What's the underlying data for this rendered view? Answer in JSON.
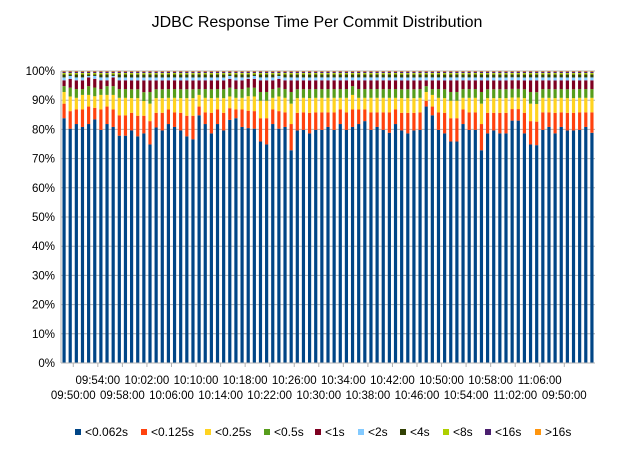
{
  "chart_data": {
    "type": "bar",
    "stacked": true,
    "normalized": true,
    "title": "JDBC Response Time Per Commit Distribution",
    "ylabel": "",
    "xlabel": "",
    "ylim": [
      0,
      100
    ],
    "yticks": [
      "0%",
      "10%",
      "20%",
      "30%",
      "40%",
      "50%",
      "60%",
      "70%",
      "80%",
      "90%",
      "100%"
    ],
    "xtick_labels": [
      {
        "bar": 2,
        "row": 1,
        "text": "09:50:00"
      },
      {
        "bar": 6,
        "row": 0,
        "text": "09:54:00"
      },
      {
        "bar": 10,
        "row": 1,
        "text": "09:58:00"
      },
      {
        "bar": 14,
        "row": 0,
        "text": "10:02:00"
      },
      {
        "bar": 18,
        "row": 1,
        "text": "10:06:00"
      },
      {
        "bar": 22,
        "row": 0,
        "text": "10:10:00"
      },
      {
        "bar": 26,
        "row": 1,
        "text": "10:14:00"
      },
      {
        "bar": 30,
        "row": 0,
        "text": "10:18:00"
      },
      {
        "bar": 34,
        "row": 1,
        "text": "10:22:00"
      },
      {
        "bar": 38,
        "row": 0,
        "text": "10:26:00"
      },
      {
        "bar": 42,
        "row": 1,
        "text": "10:30:00"
      },
      {
        "bar": 46,
        "row": 0,
        "text": "10:34:00"
      },
      {
        "bar": 50,
        "row": 1,
        "text": "10:38:00"
      },
      {
        "bar": 54,
        "row": 0,
        "text": "10:42:00"
      },
      {
        "bar": 58,
        "row": 1,
        "text": "10:46:00"
      },
      {
        "bar": 62,
        "row": 0,
        "text": "10:50:00"
      },
      {
        "bar": 66,
        "row": 1,
        "text": "10:54:00"
      },
      {
        "bar": 70,
        "row": 0,
        "text": "10:58:00"
      },
      {
        "bar": 74,
        "row": 1,
        "text": "11:02:00"
      },
      {
        "bar": 78,
        "row": 0,
        "text": "11:06:00"
      },
      {
        "bar": 82,
        "row": 1,
        "text": "09:50:00"
      }
    ],
    "bar_count": 87,
    "series": [
      {
        "name": "<0.062s",
        "color": "#004586",
        "values": [
          84,
          80,
          82,
          81,
          82,
          84,
          80,
          82,
          81,
          78,
          78,
          79,
          77,
          78,
          75,
          80,
          79,
          82,
          81,
          79,
          77,
          76,
          85,
          82,
          78,
          82,
          79,
          83,
          84,
          81,
          81,
          80,
          76,
          75,
          82,
          80,
          81,
          73,
          79,
          80,
          78,
          80,
          80,
          81,
          80,
          82,
          80,
          81,
          82,
          83,
          80,
          81,
          80,
          79,
          82,
          79,
          78,
          79,
          80,
          88,
          85,
          80,
          78,
          76,
          76,
          82,
          80,
          80,
          73,
          78,
          79,
          78,
          78,
          84,
          84,
          78,
          75,
          74,
          80,
          81,
          78,
          81,
          79,
          79,
          80,
          81,
          79
        ]
      },
      {
        "name": "<0.125s",
        "color": "#ff420e",
        "values": [
          5,
          6,
          5,
          6,
          6,
          4,
          7,
          6,
          6,
          7,
          7,
          6,
          7,
          6,
          8,
          5,
          6,
          5,
          5,
          6,
          7,
          8,
          3,
          4,
          7,
          5,
          6,
          4,
          3,
          6,
          6,
          6,
          8,
          9,
          5,
          6,
          5,
          9,
          6,
          6,
          7,
          6,
          6,
          5,
          6,
          5,
          6,
          6,
          5,
          4,
          6,
          5,
          6,
          7,
          5,
          6,
          7,
          6,
          6,
          2,
          3,
          6,
          7,
          8,
          8,
          5,
          6,
          6,
          9,
          7,
          6,
          7,
          7,
          4,
          4,
          7,
          8,
          8,
          6,
          5,
          7,
          5,
          6,
          6,
          6,
          5,
          7
        ]
      },
      {
        "name": "<0.25s",
        "color": "#ffd320",
        "values": [
          4,
          5,
          4,
          5,
          4,
          4,
          5,
          4,
          5,
          6,
          6,
          5,
          6,
          5,
          6,
          5,
          5,
          4,
          5,
          5,
          6,
          6,
          4,
          5,
          5,
          4,
          5,
          4,
          4,
          4,
          5,
          5,
          6,
          6,
          4,
          5,
          5,
          7,
          5,
          5,
          5,
          5,
          5,
          5,
          5,
          4,
          5,
          5,
          4,
          4,
          5,
          5,
          5,
          5,
          4,
          5,
          5,
          5,
          5,
          3,
          4,
          5,
          5,
          6,
          6,
          4,
          5,
          5,
          7,
          5,
          5,
          5,
          5,
          4,
          4,
          5,
          6,
          6,
          5,
          5,
          5,
          5,
          5,
          5,
          5,
          5,
          5
        ]
      },
      {
        "name": "<0.5s",
        "color": "#579d1c",
        "values": [
          2,
          3,
          3,
          2,
          3,
          3,
          2,
          3,
          3,
          3,
          3,
          3,
          3,
          3,
          4,
          3,
          3,
          3,
          3,
          3,
          3,
          3,
          2,
          3,
          3,
          3,
          3,
          3,
          3,
          3,
          3,
          3,
          3,
          3,
          3,
          3,
          3,
          4,
          3,
          3,
          3,
          3,
          3,
          3,
          3,
          3,
          3,
          3,
          3,
          3,
          3,
          3,
          3,
          3,
          3,
          3,
          3,
          3,
          3,
          2,
          2,
          3,
          3,
          3,
          3,
          3,
          3,
          3,
          4,
          3,
          3,
          3,
          3,
          3,
          3,
          3,
          4,
          4,
          3,
          3,
          3,
          3,
          3,
          3,
          3,
          3,
          3
        ]
      },
      {
        "name": "<1s",
        "color": "#7e0021",
        "values": [
          2,
          3,
          3,
          3,
          3,
          3,
          3,
          2,
          3,
          3,
          3,
          3,
          3,
          4,
          4,
          3,
          3,
          3,
          3,
          3,
          3,
          3,
          3,
          3,
          3,
          3,
          3,
          3,
          3,
          3,
          3,
          3,
          4,
          4,
          3,
          3,
          3,
          4,
          3,
          3,
          3,
          3,
          3,
          3,
          3,
          3,
          3,
          2,
          3,
          3,
          3,
          3,
          3,
          3,
          3,
          3,
          3,
          3,
          3,
          2,
          3,
          3,
          3,
          4,
          4,
          3,
          3,
          3,
          4,
          3,
          3,
          3,
          3,
          3,
          3,
          3,
          4,
          4,
          3,
          3,
          3,
          3,
          3,
          3,
          3,
          3,
          3
        ]
      },
      {
        "name": "<2s",
        "color": "#83caff",
        "values": [
          1,
          1,
          1,
          1,
          0.5,
          1,
          1,
          1,
          0.5,
          1,
          1,
          1,
          1,
          1,
          1,
          1,
          1,
          1,
          1,
          1,
          1,
          1,
          1,
          1,
          1,
          1,
          1,
          1,
          1,
          1,
          0.5,
          1,
          1,
          1,
          1,
          1,
          1,
          1,
          1,
          1,
          1,
          1,
          1,
          1,
          1,
          1,
          1,
          1,
          1,
          1,
          1,
          1,
          1,
          1,
          1,
          1,
          1,
          1,
          1,
          1,
          1,
          1,
          1,
          1,
          1,
          1,
          1,
          1,
          1,
          1,
          1,
          1,
          1,
          1,
          1,
          1,
          1,
          1,
          1,
          1,
          1,
          1,
          1,
          1,
          1,
          1,
          1
        ]
      },
      {
        "name": "<4s",
        "color": "#314004",
        "values": [
          1,
          0.5,
          1,
          1,
          0.5,
          0.5,
          1,
          1,
          0.5,
          1,
          1,
          1,
          1,
          1,
          1,
          1,
          1,
          1,
          1,
          1,
          1,
          1,
          1,
          1,
          1,
          1,
          1,
          0.5,
          1,
          1,
          1,
          0.5,
          1,
          1,
          1,
          0.5,
          1,
          1,
          1,
          1,
          1,
          1,
          1,
          1,
          1,
          1,
          1,
          1,
          1,
          1,
          1,
          1,
          1,
          1,
          1,
          1,
          1,
          1,
          1,
          1,
          1,
          1,
          1,
          1,
          1,
          1,
          1,
          1,
          1,
          1,
          1,
          1,
          1,
          1,
          1,
          1,
          1,
          1,
          1,
          1,
          1,
          1,
          1,
          1,
          1,
          1,
          1
        ]
      },
      {
        "name": "<8s",
        "color": "#aecf00",
        "values": [
          0.5,
          0.5,
          0.5,
          0.5,
          0.5,
          0.5,
          0.5,
          0.5,
          0.5,
          0.5,
          0.5,
          0.5,
          0.5,
          0.5,
          0.5,
          0.5,
          0.5,
          0.5,
          0.5,
          0.5,
          0.5,
          0.5,
          0.5,
          0.5,
          0.5,
          0.5,
          0.5,
          0.5,
          0.5,
          0.5,
          0.5,
          0.5,
          0.5,
          0.5,
          0.5,
          0.5,
          0.5,
          0.5,
          0.5,
          0.5,
          0.5,
          0.5,
          0.5,
          0.5,
          0.5,
          0.5,
          0.5,
          0.5,
          0.5,
          0.5,
          0.5,
          0.5,
          0.5,
          0.5,
          0.5,
          0.5,
          0.5,
          0.5,
          0.5,
          0.5,
          0.5,
          0.5,
          0.5,
          0.5,
          0.5,
          0.5,
          0.5,
          0.5,
          0.5,
          0.5,
          0.5,
          0.5,
          0.5,
          0.5,
          0.5,
          0.5,
          0.5,
          0.5,
          0.5,
          0.5,
          0.5,
          0.5,
          0.5,
          0.5,
          0.5,
          0.5,
          0.5
        ]
      },
      {
        "name": "<16s",
        "color": "#4b1f6f",
        "values": [
          0.5,
          0.5,
          0.5,
          0.5,
          0.5,
          0.5,
          0.5,
          0.5,
          0.5,
          0.5,
          0.5,
          0.5,
          0.5,
          0.5,
          0.5,
          0.5,
          0.5,
          0.5,
          0.5,
          0.5,
          0.5,
          0.5,
          0.5,
          0.5,
          0.5,
          0.5,
          0.5,
          0.5,
          0.5,
          0.5,
          0.5,
          0.5,
          0.5,
          0.5,
          0.5,
          0.5,
          0.5,
          0.5,
          0.5,
          0.5,
          0.5,
          0.5,
          0.5,
          0.5,
          0.5,
          0.5,
          0.5,
          0.5,
          0.5,
          0.5,
          0.5,
          0.5,
          0.5,
          0.5,
          0.5,
          0.5,
          0.5,
          0.5,
          0.5,
          0.5,
          0.5,
          0.5,
          0.5,
          0.5,
          0.5,
          0.5,
          0.5,
          0.5,
          0.5,
          0.5,
          0.5,
          0.5,
          0.5,
          0.5,
          0.5,
          0.5,
          0.5,
          0.5,
          0.5,
          0.5,
          0.5,
          0.5,
          0.5,
          0.5,
          0.5,
          0.5,
          0.5
        ]
      },
      {
        "name": ">16s",
        "color": "#ff950e",
        "values": [
          0.2,
          0.2,
          0.2,
          0.2,
          0.2,
          0.2,
          0.2,
          0.2,
          0.2,
          0.2,
          0.2,
          0.2,
          0.2,
          0.2,
          0.2,
          0.2,
          0.2,
          0.2,
          0.2,
          0.2,
          0.2,
          0.2,
          0.2,
          0.2,
          0.2,
          0.2,
          0.2,
          0.2,
          0.2,
          0.2,
          0.2,
          0.2,
          0.2,
          0.2,
          0.2,
          0.2,
          0.2,
          0.2,
          0.2,
          0.2,
          0.2,
          0.2,
          0.2,
          0.2,
          0.2,
          0.2,
          0.2,
          0.2,
          0.2,
          0.2,
          0.2,
          0.2,
          0.2,
          0.2,
          0.2,
          0.2,
          0.2,
          0.2,
          0.2,
          0.2,
          0.2,
          0.2,
          0.2,
          0.2,
          0.2,
          0.2,
          0.2,
          0.2,
          0.2,
          0.2,
          0.2,
          0.2,
          0.2,
          0.2,
          0.2,
          0.2,
          0.2,
          0.2,
          0.2,
          0.2,
          0.2,
          0.2,
          0.2,
          0.2,
          0.2,
          0.2,
          0.2
        ]
      }
    ],
    "grid": true,
    "legend_position": "bottom"
  }
}
